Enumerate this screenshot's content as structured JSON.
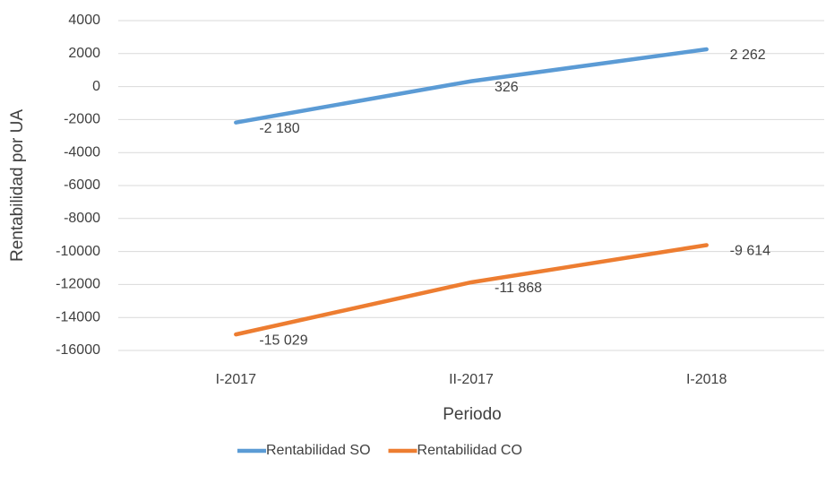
{
  "chart_data": {
    "type": "line",
    "x_label": "Periodo",
    "y_label": "Rentabilidad por UA",
    "categories": [
      "I-2017",
      "II-2017",
      "I-2018"
    ],
    "series": [
      {
        "name": "Rentabilidad SO",
        "color": "#5b9bd5",
        "values": [
          -2180,
          326,
          2262
        ],
        "value_labels": [
          "-2 180",
          "326",
          "2 262"
        ]
      },
      {
        "name": "Rentabilidad CO",
        "color": "#ed7d31",
        "values": [
          -15029,
          -11868,
          -9614
        ],
        "value_labels": [
          "-15 029",
          "-11 868",
          "-9 614"
        ]
      }
    ],
    "ylim": [
      -16000,
      4000
    ],
    "yticks": [
      4000,
      2000,
      0,
      -2000,
      -4000,
      -6000,
      -8000,
      -10000,
      -12000,
      -14000,
      -16000
    ],
    "grid": true,
    "legend": "bottom"
  }
}
